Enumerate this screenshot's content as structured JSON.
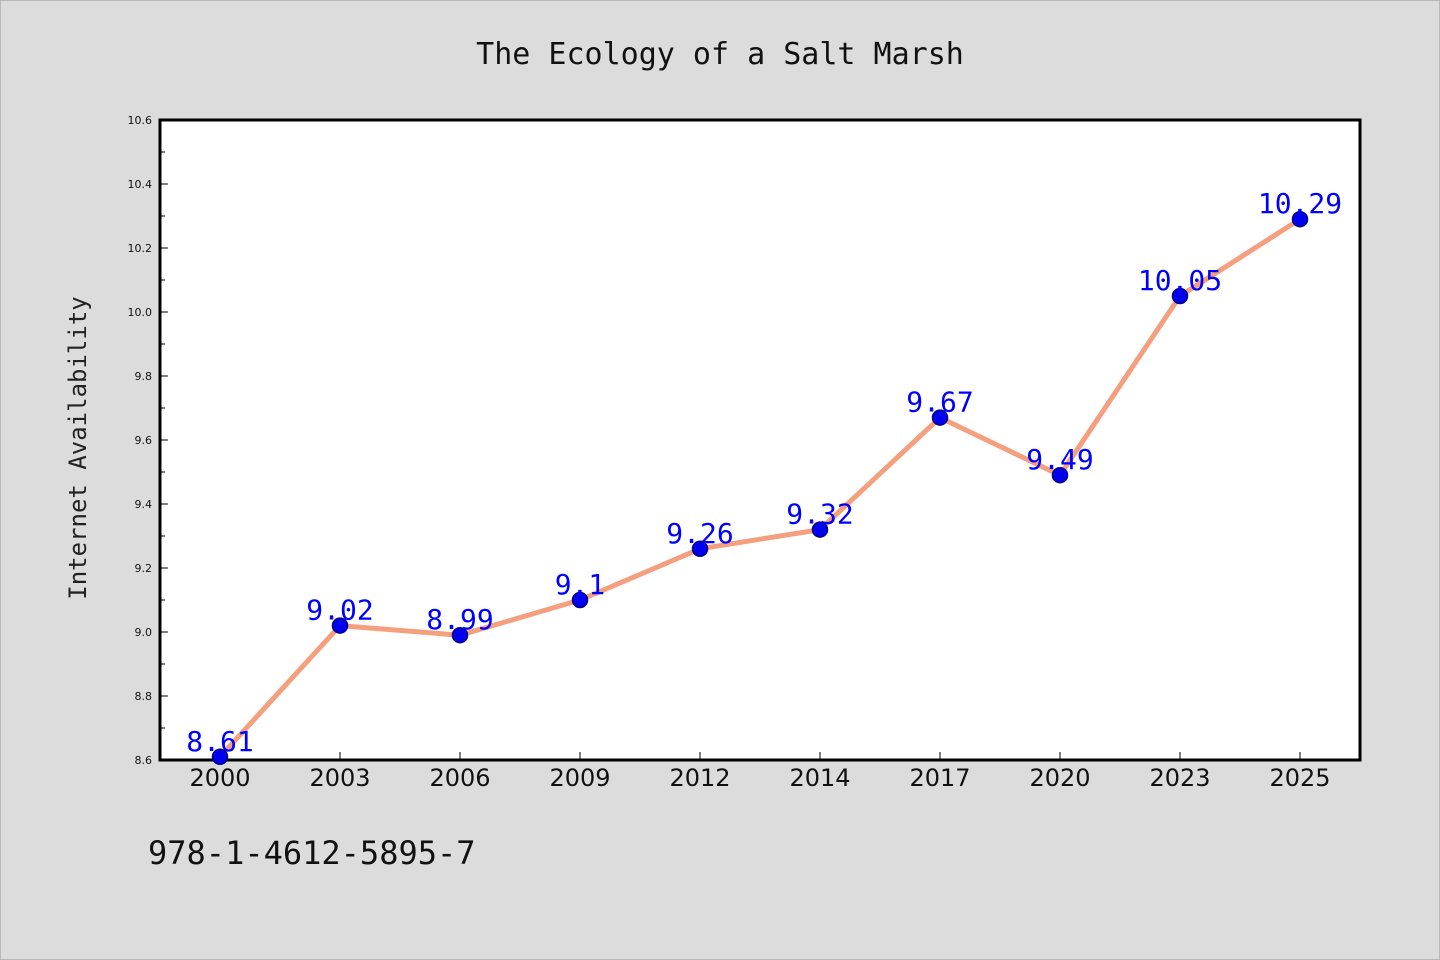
{
  "chart_data": {
    "type": "line",
    "title": "The Ecology of a Salt Marsh",
    "xlabel": "",
    "ylabel": "Internet Availability",
    "categories": [
      "2000",
      "2003",
      "2006",
      "2009",
      "2012",
      "2014",
      "2017",
      "2020",
      "2023",
      "2025"
    ],
    "series": [
      {
        "values": [
          8.61,
          9.02,
          8.99,
          9.1,
          9.26,
          9.32,
          9.67,
          9.49,
          10.05,
          10.29
        ],
        "data_labels": [
          "8.61",
          "9.02",
          "8.99",
          "9.1",
          "9.26",
          "9.32",
          "9.67",
          "9.49",
          "10.05",
          "10.29"
        ]
      }
    ],
    "ylim": [
      8.6,
      10.6
    ],
    "yticks": [
      "8.6",
      "8.8",
      "9.0",
      "9.2",
      "9.4",
      "9.6",
      "9.8",
      "10.0",
      "10.2",
      "10.4",
      "10.6"
    ],
    "grid": false,
    "legend": "none",
    "colors": {
      "line": "#f4a07e",
      "marker_fill": "#0000ee",
      "marker_edge": "#00008b",
      "data_label": "#0000ff",
      "background": "#dcdcdc",
      "plot_background": "#ffffff"
    }
  },
  "footer": {
    "isbn": "978-1-4612-5895-7"
  }
}
